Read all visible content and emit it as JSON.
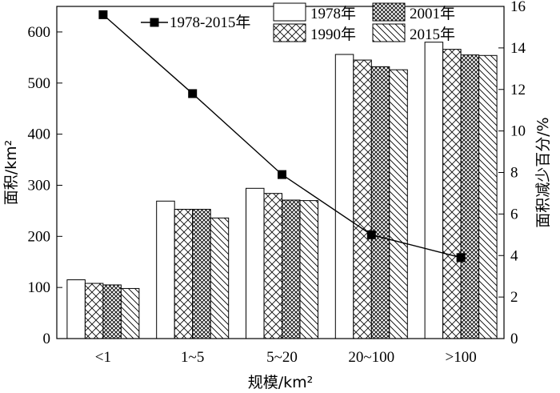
{
  "chart_data": {
    "type": "bar",
    "categories": [
      "<1",
      "1~5",
      "5~20",
      "20~100",
      ">100"
    ],
    "series": [
      {
        "name": "1978年",
        "pattern": "none",
        "values": [
          115,
          269,
          294,
          556,
          580
        ]
      },
      {
        "name": "1990年",
        "pattern": "crosshatch",
        "values": [
          108,
          253,
          284,
          545,
          566
        ]
      },
      {
        "name": "2001年",
        "pattern": "dense-crosshatch",
        "values": [
          105,
          253,
          271,
          532,
          555
        ]
      },
      {
        "name": "2015年",
        "pattern": "diagonal",
        "values": [
          98,
          236,
          270,
          526,
          554
        ]
      }
    ],
    "line_series": {
      "name": "1978-2015年",
      "axis": "right",
      "marker": "square",
      "values": [
        15.6,
        11.8,
        7.9,
        5.0,
        3.9
      ]
    },
    "xlabel": "规模/km²",
    "ylabel": "面积/km²",
    "y2label": "面积减少百分/%",
    "ylim": [
      0,
      650
    ],
    "yticks": [
      0,
      100,
      200,
      300,
      400,
      500,
      600
    ],
    "y2lim": [
      0,
      16
    ],
    "y2ticks": [
      0,
      2,
      4,
      6,
      8,
      10,
      12,
      14,
      16
    ],
    "legend_placement": "top",
    "grid": false,
    "colors": {
      "bar_fill": "#ffffff",
      "stroke": "#000000",
      "line": "#000000"
    }
  }
}
